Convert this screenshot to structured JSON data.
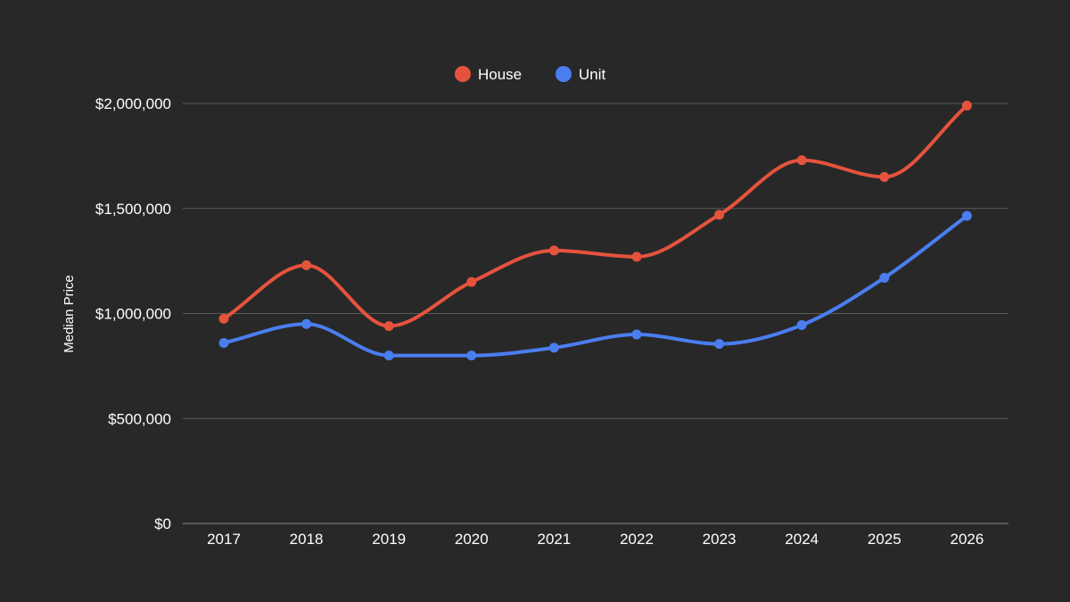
{
  "chart_data": {
    "type": "line",
    "title": "",
    "xlabel": "",
    "ylabel": "Median Price",
    "categories": [
      "2017",
      "2018",
      "2019",
      "2020",
      "2021",
      "2022",
      "2023",
      "2024",
      "2025",
      "2026"
    ],
    "series": [
      {
        "name": "House",
        "color": "#e5533d",
        "values": [
          975000,
          1230000,
          940000,
          1150000,
          1300000,
          1270000,
          1470000,
          1730000,
          1650000,
          1990000
        ]
      },
      {
        "name": "Unit",
        "color": "#4a7ef0",
        "values": [
          860000,
          950000,
          800000,
          800000,
          837000,
          900000,
          855000,
          945000,
          1170000,
          1465000
        ]
      }
    ],
    "ylim": [
      0,
      2000000
    ],
    "yticks": [
      0,
      500000,
      1000000,
      1500000,
      2000000
    ],
    "ytick_labels": [
      "$0",
      "$500,000",
      "$1,000,000",
      "$1,500,000",
      "$2,000,000"
    ],
    "grid": true,
    "legend_position": "top-center"
  }
}
